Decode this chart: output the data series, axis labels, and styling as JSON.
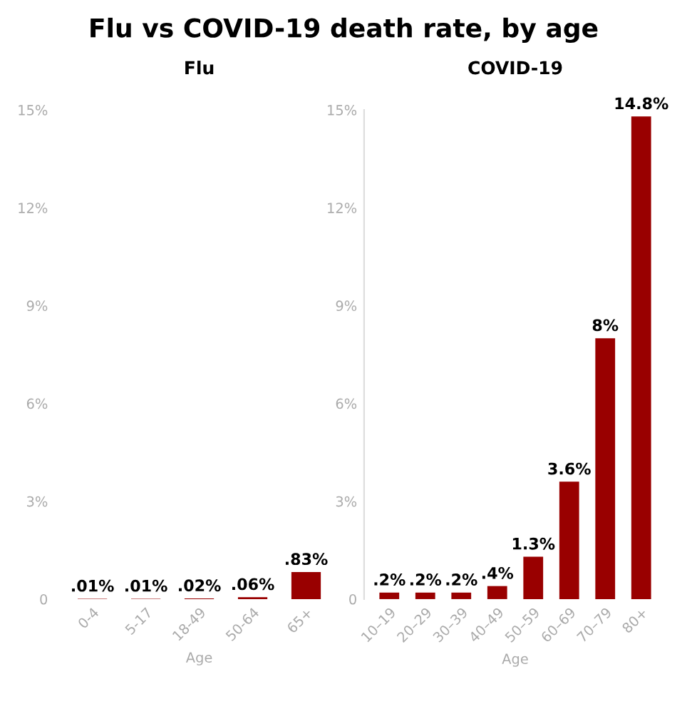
{
  "chart_data": [
    {
      "type": "bar",
      "title": "Flu vs COVID-19 death rate, by age",
      "subtitle": "Flu",
      "xlabel": "Age",
      "categories": [
        "0-4",
        "5-17",
        "18-49",
        "50-64",
        "65+"
      ],
      "values": [
        0.01,
        0.01,
        0.02,
        0.06,
        0.83
      ],
      "value_labels": [
        ".01%",
        ".01%",
        ".02%",
        ".06%",
        ".83%"
      ],
      "color": "#990000",
      "ylim": [
        0,
        15
      ],
      "yticks": [
        0,
        {
          "value": 3,
          "label": "3%"
        },
        {
          "value": 6,
          "label": "6%"
        },
        {
          "value": 9,
          "label": "9%"
        },
        {
          "value": 12,
          "label": "12%"
        },
        {
          "value": 15,
          "label": "15%"
        }
      ],
      "grid": false
    },
    {
      "type": "bar",
      "subtitle": "COVID-19",
      "xlabel": "Age",
      "categories": [
        "10–19",
        "20–29",
        "30–39",
        "40–49",
        "50–59",
        "60–69",
        "70–79",
        "80+"
      ],
      "values": [
        0.2,
        0.2,
        0.2,
        0.4,
        1.3,
        3.6,
        8,
        14.8
      ],
      "value_labels": [
        ".2%",
        ".2%",
        ".2%",
        ".4%",
        "1.3%",
        "3.6%",
        "8%",
        "14.8%"
      ],
      "color": "#990000",
      "ylim": [
        0,
        15
      ],
      "yticks": [
        0,
        {
          "value": 3,
          "label": "3%"
        },
        {
          "value": 6,
          "label": "6%"
        },
        {
          "value": 9,
          "label": "9%"
        },
        {
          "value": 12,
          "label": "12%"
        },
        {
          "value": 15,
          "label": "15%"
        }
      ],
      "grid": false
    }
  ]
}
